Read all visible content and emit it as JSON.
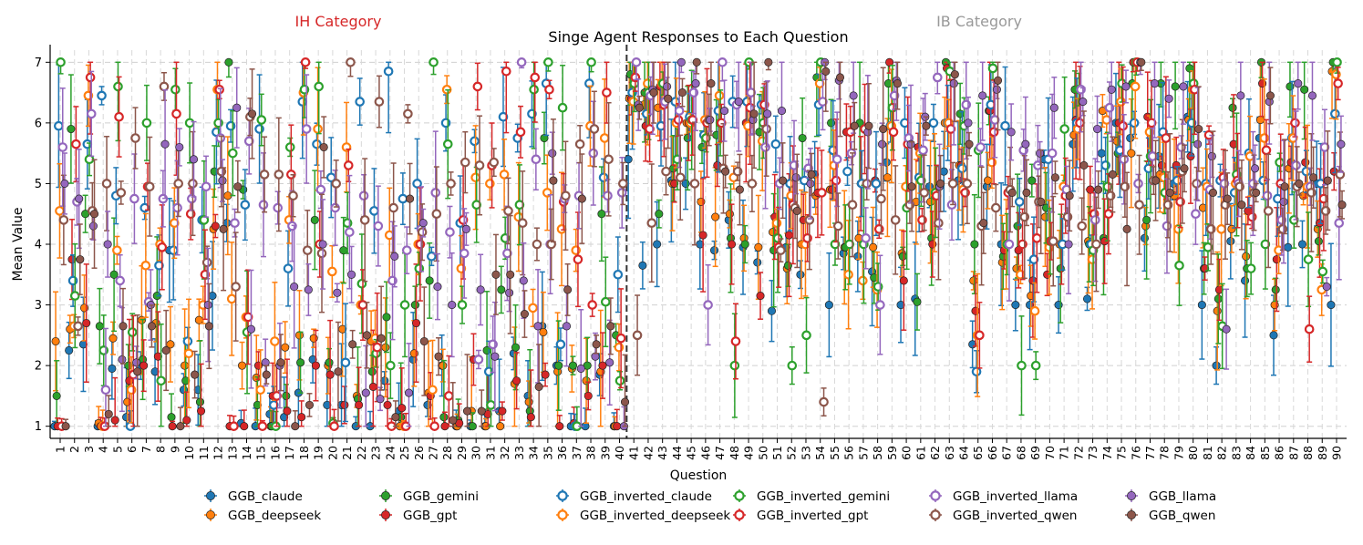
{
  "chart_data": {
    "type": "scatter",
    "title": "Singe Agent Responses to Each Question",
    "xlabel": "Question",
    "ylabel": "Mean Value",
    "ylim": [
      0.8,
      7.2
    ],
    "yticks": [
      1,
      2,
      3,
      4,
      5,
      6,
      7
    ],
    "x": [
      1,
      2,
      3,
      4,
      5,
      6,
      7,
      8,
      9,
      10,
      11,
      12,
      13,
      14,
      15,
      16,
      17,
      18,
      19,
      20,
      21,
      22,
      23,
      24,
      25,
      26,
      27,
      28,
      29,
      30,
      31,
      32,
      33,
      34,
      35,
      36,
      37,
      38,
      39,
      40,
      41,
      42,
      43,
      44,
      45,
      46,
      47,
      48,
      49,
      50,
      51,
      52,
      53,
      54,
      55,
      56,
      57,
      58,
      59,
      60,
      61,
      62,
      63,
      64,
      65,
      66,
      67,
      68,
      69,
      70,
      71,
      72,
      73,
      74,
      75,
      76,
      77,
      78,
      79,
      80,
      81,
      82,
      83,
      84,
      85,
      86,
      87,
      88,
      89,
      90
    ],
    "divider_after": 40,
    "grid": true,
    "categories": [
      {
        "label": "IH Category",
        "color": "#d62728",
        "range": [
          1,
          40
        ]
      },
      {
        "label": "IB Category",
        "color": "#999999",
        "range": [
          41,
          90
        ]
      }
    ],
    "legend": {
      "location": "bottom",
      "ncol": 6
    },
    "series": [
      {
        "name": "GGB_claude",
        "color": "#1f77b4",
        "marker": "filled",
        "values": [
          1.0,
          2.25,
          2.35,
          1.0,
          1.95,
          1.15,
          2.0,
          1.9,
          3.9,
          1.6,
          1.6,
          3.15,
          4.35,
          1.05,
          1.0,
          1.2,
          1.15,
          1.55,
          2.1,
          1.35,
          1.35,
          1.0,
          1.0,
          1.75,
          1.25,
          2.1,
          1.35,
          2.0,
          1.0,
          1.0,
          1.0,
          1.25,
          2.2,
          1.5,
          2.65,
          2.0,
          1.0,
          1.0,
          1.85,
          1.0,
          5.4,
          3.65,
          4.0,
          5.05,
          5.0,
          4.0,
          3.9,
          4.4,
          3.95,
          3.7,
          2.9,
          3.95,
          3.5,
          5.15,
          3.0,
          3.85,
          3.8,
          3.55,
          5.35,
          3.0,
          3.1,
          4.95,
          5.2,
          5.05,
          2.35,
          4.95,
          4.0,
          3.0,
          3.0,
          5.4,
          3.0,
          5.65,
          3.1,
          5.5,
          6.0,
          5.75,
          4.1,
          5.45,
          5.0,
          6.1,
          3.0,
          2.0,
          4.05,
          3.4,
          5.75,
          2.5,
          3.95,
          4.0,
          5.0,
          3.0
        ]
      },
      {
        "name": "GGB_deepseek",
        "color": "#ff7f0e",
        "marker": "filled",
        "values": [
          2.4,
          2.6,
          2.95,
          1.05,
          2.45,
          1.4,
          2.75,
          2.7,
          2.35,
          2.0,
          2.75,
          4.25,
          4.8,
          2.0,
          1.8,
          1.0,
          2.3,
          2.5,
          2.45,
          2.0,
          2.6,
          1.5,
          2.4,
          2.3,
          1.0,
          2.2,
          1.55,
          2.0,
          1.0,
          1.25,
          1.0,
          1.0,
          1.7,
          1.4,
          2.55,
          1.9,
          1.95,
          1.75,
          1.9,
          1.0,
          6.4,
          6.3,
          6.25,
          5.0,
          6.0,
          4.7,
          4.45,
          4.5,
          4.1,
          3.95,
          4.2,
          3.6,
          4.0,
          4.8,
          4.9,
          3.95,
          4.1,
          3.95,
          5.1,
          3.85,
          4.7,
          4.7,
          6.0,
          5.3,
          3.4,
          5.05,
          3.7,
          3.6,
          3.15,
          4.45,
          4.0,
          5.8,
          4.05,
          6.2,
          5.7,
          5.5,
          4.3,
          5.15,
          4.8,
          6.05,
          4.6,
          2.9,
          4.25,
          3.8,
          6.05,
          3.0,
          5.25,
          4.8,
          4.25,
          6.85
        ]
      },
      {
        "name": "GGB_gemini",
        "color": "#2ca02c",
        "marker": "filled",
        "values": [
          1.5,
          5.9,
          4.5,
          2.65,
          3.5,
          2.0,
          2.1,
          3.15,
          1.15,
          1.75,
          1.4,
          5.2,
          7.0,
          4.9,
          1.35,
          1.0,
          1.5,
          2.05,
          4.4,
          2.05,
          3.9,
          1.45,
          1.9,
          2.8,
          1.15,
          3.0,
          3.4,
          1.15,
          1.1,
          1.0,
          2.25,
          3.25,
          2.3,
          1.25,
          5.75,
          2.0,
          2.0,
          2.0,
          4.5,
          2.5,
          6.8,
          6.5,
          4.5,
          5.25,
          5.75,
          5.6,
          5.8,
          4.1,
          4.0,
          5.85,
          3.9,
          3.65,
          5.75,
          6.75,
          6.0,
          3.95,
          6.0,
          3.45,
          6.65,
          3.8,
          3.05,
          4.1,
          7.0,
          6.15,
          4.0,
          6.2,
          3.8,
          4.3,
          5.05,
          4.6,
          3.6,
          6.55,
          4.0,
          4.1,
          5.5,
          6.65,
          4.4,
          6.65,
          6.6,
          6.9,
          3.6,
          3.1,
          6.25,
          3.6,
          7.0,
          3.25,
          6.6,
          6.55,
          4.05,
          7.0
        ]
      },
      {
        "name": "GGB_gpt",
        "color": "#d62728",
        "marker": "filled",
        "values": [
          1.0,
          3.75,
          2.7,
          1.0,
          1.1,
          1.75,
          2.0,
          2.15,
          1.0,
          1.1,
          1.25,
          4.3,
          1.0,
          1.0,
          2.0,
          1.5,
          1.25,
          1.15,
          2.0,
          1.85,
          1.35,
          1.35,
          1.65,
          1.35,
          1.3,
          2.7,
          1.5,
          1.0,
          1.05,
          2.1,
          1.2,
          1.25,
          1.75,
          1.15,
          1.85,
          1.0,
          1.05,
          1.5,
          2.0,
          1.0,
          6.4,
          5.95,
          6.6,
          5.0,
          6.0,
          4.15,
          5.3,
          4.0,
          6.0,
          3.15,
          4.45,
          4.15,
          4.4,
          4.85,
          4.9,
          5.85,
          5.0,
          5.05,
          7.0,
          3.4,
          5.6,
          4.0,
          6.9,
          5.3,
          2.9,
          6.2,
          3.9,
          3.9,
          3.4,
          3.5,
          4.0,
          6.05,
          4.9,
          4.05,
          6.0,
          7.0,
          6.1,
          5.3,
          5.3,
          5.45,
          3.6,
          3.25,
          5.65,
          4.55,
          6.65,
          3.75,
          5.35,
          5.35,
          4.35,
          5.2
        ]
      },
      {
        "name": "GGB_inverted_claude",
        "color": "#1f77b4",
        "marker": "open",
        "values": [
          5.95,
          3.4,
          5.65,
          6.45,
          4.8,
          1.0,
          4.6,
          3.65,
          3.9,
          2.4,
          4.4,
          5.85,
          5.95,
          4.65,
          5.9,
          1.35,
          3.6,
          6.35,
          5.65,
          5.1,
          2.05,
          6.35,
          4.55,
          6.85,
          4.75,
          5.0,
          3.8,
          6.0,
          4.35,
          5.7,
          1.9,
          6.1,
          5.75,
          6.15,
          6.65,
          2.35,
          1.0,
          6.65,
          5.1,
          3.5,
          6.5,
          6.15,
          5.95,
          6.35,
          6.1,
          5.8,
          6.2,
          6.35,
          6.35,
          6.3,
          5.65,
          5.0,
          5.05,
          6.3,
          5.55,
          5.2,
          5.0,
          5.0,
          5.95,
          6.0,
          5.1,
          6.0,
          6.0,
          5.25,
          1.9,
          6.3,
          5.95,
          4.7,
          3.75,
          5.4,
          4.0,
          6.0,
          4.0,
          5.3,
          5.55,
          6.0,
          5.25,
          5.85,
          5.05,
          6.0,
          5.0,
          5.05,
          4.85,
          5.5,
          5.05,
          4.75,
          5.75,
          5.2,
          5.0,
          6.15
        ]
      },
      {
        "name": "GGB_inverted_deepseek",
        "color": "#ff7f0e",
        "marker": "open",
        "values": [
          4.55,
          2.65,
          6.45,
          1.0,
          3.9,
          1.6,
          3.65,
          4.0,
          4.35,
          2.2,
          3.0,
          6.55,
          3.1,
          2.8,
          1.6,
          2.4,
          4.4,
          6.5,
          5.9,
          3.55,
          5.6,
          3.0,
          2.45,
          4.15,
          1.0,
          4.0,
          1.6,
          6.55,
          3.6,
          5.1,
          5.0,
          5.15,
          4.45,
          2.95,
          4.85,
          4.25,
          3.9,
          5.95,
          5.75,
          2.3,
          6.35,
          6.65,
          6.65,
          6.0,
          6.0,
          6.05,
          6.45,
          5.1,
          5.95,
          5.7,
          4.35,
          4.8,
          4.0,
          6.65,
          5.3,
          3.5,
          3.4,
          3.25,
          5.95,
          4.95,
          5.5,
          4.85,
          6.0,
          4.9,
          2.5,
          5.35,
          4.0,
          3.5,
          2.9,
          3.95,
          4.95,
          5.9,
          3.75,
          6.05,
          6.35,
          6.6,
          5.85,
          5.1,
          4.25,
          6.55,
          4.95,
          4.25,
          5.0,
          5.45,
          5.75,
          3.9,
          5.75,
          4.95,
          3.25,
          6.8
        ]
      },
      {
        "name": "GGB_inverted_gemini",
        "color": "#2ca02c",
        "marker": "open",
        "values": [
          7.0,
          3.15,
          5.4,
          2.25,
          6.6,
          2.55,
          6.0,
          1.75,
          6.55,
          6.0,
          4.4,
          6.0,
          5.5,
          2.55,
          6.05,
          1.0,
          5.6,
          6.55,
          6.6,
          1.05,
          4.35,
          3.35,
          2.2,
          2.0,
          3.0,
          3.6,
          7.0,
          5.65,
          3.0,
          4.65,
          1.35,
          4.1,
          4.65,
          6.55,
          7.0,
          6.25,
          1.0,
          7.0,
          3.05,
          1.75,
          6.65,
          6.5,
          6.65,
          5.4,
          6.05,
          5.75,
          6.0,
          2.0,
          7.0,
          6.0,
          4.1,
          2.0,
          2.5,
          7.0,
          4.0,
          4.0,
          4.0,
          3.3,
          6.25,
          4.6,
          5.05,
          4.85,
          6.85,
          5.95,
          5.55,
          6.9,
          4.0,
          2.0,
          2.0,
          4.05,
          5.9,
          6.55,
          3.9,
          4.95,
          6.65,
          7.0,
          5.45,
          4.85,
          3.65,
          6.65,
          3.95,
          2.65,
          5.15,
          3.6,
          4.0,
          5.35,
          4.4,
          3.75,
          3.55,
          7.0
        ]
      },
      {
        "name": "GGB_inverted_gpt",
        "color": "#d62728",
        "marker": "open",
        "values": [
          1.0,
          5.65,
          6.75,
          1.0,
          6.1,
          1.85,
          4.95,
          3.95,
          6.15,
          4.5,
          3.5,
          6.55,
          1.0,
          2.8,
          1.0,
          1.5,
          5.15,
          7.0,
          4.0,
          1.0,
          5.3,
          3.0,
          2.3,
          1.0,
          1.0,
          4.0,
          1.0,
          1.5,
          4.4,
          6.6,
          5.3,
          6.85,
          5.85,
          6.75,
          6.55,
          4.7,
          3.75,
          3.0,
          6.5,
          2.45,
          6.75,
          5.9,
          6.3,
          6.05,
          6.05,
          6.0,
          6.0,
          2.4,
          6.25,
          6.3,
          3.95,
          4.65,
          4.1,
          4.85,
          5.05,
          5.85,
          5.9,
          4.25,
          5.85,
          5.65,
          4.4,
          4.8,
          5.9,
          4.85,
          2.5,
          5.85,
          4.85,
          4.0,
          4.1,
          4.05,
          4.8,
          6.0,
          4.5,
          4.5,
          5.95,
          7.0,
          6.0,
          5.75,
          4.7,
          6.55,
          5.8,
          5.1,
          5.05,
          4.45,
          5.55,
          5.0,
          6.0,
          2.6,
          4.75,
          6.65
        ]
      },
      {
        "name": "GGB_inverted_llama",
        "color": "#9467bd",
        "marker": "open",
        "values": [
          5.6,
          4.7,
          6.15,
          1.6,
          3.4,
          4.75,
          3.05,
          4.75,
          4.6,
          4.75,
          4.95,
          5.75,
          4.35,
          5.7,
          4.65,
          4.6,
          4.3,
          5.9,
          4.9,
          4.6,
          4.2,
          4.8,
          4.3,
          3.4,
          3.9,
          4.25,
          4.85,
          4.2,
          3.85,
          2.1,
          2.35,
          3.85,
          7.0,
          5.4,
          4.0,
          4.75,
          4.8,
          5.5,
          4.8,
          4.85,
          7.0,
          6.45,
          6.35,
          6.2,
          6.5,
          3.0,
          7.0,
          6.3,
          6.5,
          5.6,
          5.0,
          5.3,
          5.25,
          6.35,
          5.4,
          5.5,
          4.1,
          3.0,
          6.45,
          5.75,
          5.55,
          6.75,
          4.65,
          6.3,
          5.6,
          6.05,
          4.0,
          5.55,
          5.3,
          5.5,
          4.9,
          6.55,
          4.4,
          6.25,
          5.4,
          5.0,
          5.45,
          4.3,
          5.6,
          4.5,
          4.9,
          5.0,
          5.0,
          5.0,
          4.8,
          4.4,
          5.3,
          4.95,
          5.6,
          4.35
        ]
      },
      {
        "name": "GGB_inverted_qwen",
        "color": "#8c564b",
        "marker": "open",
        "values": [
          4.4,
          2.65,
          4.55,
          5.0,
          4.85,
          5.75,
          4.95,
          6.6,
          5.0,
          5.0,
          3.7,
          5.2,
          3.3,
          6.1,
          5.15,
          5.15,
          4.8,
          3.9,
          3.85,
          5.0,
          7.0,
          4.4,
          6.35,
          4.6,
          6.15,
          4.2,
          4.5,
          5.0,
          5.35,
          5.3,
          5.35,
          4.55,
          4.35,
          4.0,
          4.0,
          4.8,
          5.65,
          5.9,
          5.4,
          5.0,
          2.5,
          4.35,
          5.2,
          5.1,
          5.0,
          6.05,
          5.25,
          5.2,
          5.0,
          5.9,
          3.9,
          4.6,
          4.4,
          1.4,
          4.3,
          4.65,
          5.0,
          4.75,
          4.4,
          4.65,
          4.85,
          4.35,
          5.0,
          5.0,
          4.3,
          4.6,
          4.9,
          4.45,
          4.7,
          4.05,
          4.45,
          4.3,
          4.0,
          4.8,
          4.95,
          4.65,
          5.05,
          4.65,
          5.2,
          5.0,
          4.25,
          4.65,
          4.95,
          4.85,
          4.55,
          4.25,
          4.95,
          4.85,
          4.55,
          5.15
        ]
      },
      {
        "name": "GGB_llama",
        "color": "#9467bd",
        "marker": "filled",
        "values": [
          5.0,
          4.75,
          4.3,
          4.0,
          2.1,
          2.05,
          3.0,
          5.65,
          5.6,
          5.4,
          3.0,
          5.05,
          6.25,
          2.6,
          2.05,
          2.0,
          3.3,
          3.25,
          4.0,
          3.2,
          3.5,
          1.55,
          1.45,
          3.8,
          1.55,
          4.35,
          3.3,
          3.0,
          4.25,
          3.25,
          2.15,
          3.2,
          3.4,
          2.65,
          5.5,
          2.65,
          1.95,
          2.15,
          2.05,
          1.0,
          6.3,
          6.55,
          6.6,
          7.0,
          6.65,
          6.05,
          6.2,
          6.35,
          6.05,
          6.15,
          6.2,
          5.1,
          5.0,
          7.0,
          6.7,
          6.45,
          5.85,
          5.65,
          6.7,
          5.65,
          6.1,
          4.95,
          6.65,
          6.0,
          6.45,
          6.55,
          5.85,
          5.65,
          5.5,
          6.25,
          4.0,
          6.35,
          5.9,
          6.55,
          6.6,
          7.0,
          6.65,
          6.4,
          6.6,
          5.65,
          5.45,
          2.6,
          6.45,
          5.25,
          6.35,
          4.7,
          6.65,
          6.45,
          3.3,
          5.65
        ]
      },
      {
        "name": "GGB_qwen",
        "color": "#8c564b",
        "marker": "filled",
        "values": [
          1.0,
          3.75,
          4.5,
          1.2,
          2.65,
          1.9,
          2.65,
          2.25,
          1.0,
          1.85,
          2.65,
          4.25,
          4.95,
          6.15,
          1.85,
          2.05,
          1.0,
          1.35,
          5.6,
          1.9,
          2.35,
          2.5,
          2.45,
          1.15,
          4.75,
          2.4,
          2.15,
          1.1,
          1.25,
          1.25,
          3.5,
          3.5,
          2.85,
          1.65,
          5.05,
          3.25,
          4.75,
          2.35,
          2.65,
          1.4,
          6.25,
          6.5,
          6.4,
          6.5,
          7.0,
          6.65,
          5.2,
          4.9,
          6.15,
          7.0,
          5.05,
          4.55,
          5.15,
          6.85,
          6.75,
          5.95,
          5.95,
          5.9,
          6.65,
          4.95,
          5.95,
          5.0,
          6.8,
          5.65,
          4.35,
          6.7,
          4.85,
          4.85,
          4.7,
          5.1,
          4.8,
          5.3,
          4.9,
          5.15,
          4.25,
          7.0,
          5.05,
          4.85,
          5.25,
          5.9,
          4.85,
          4.75,
          4.65,
          4.85,
          6.45,
          4.95,
          5.0,
          5.1,
          5.05,
          4.65
        ]
      }
    ]
  }
}
